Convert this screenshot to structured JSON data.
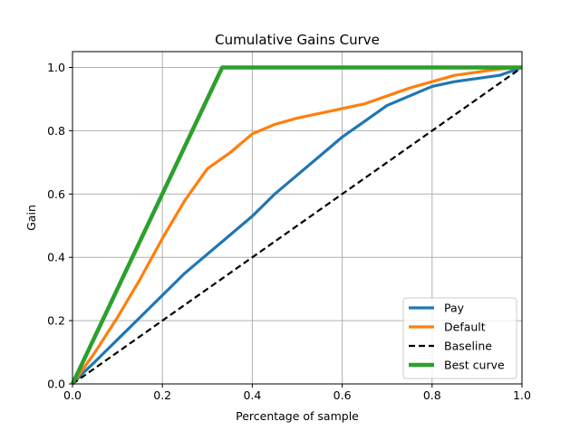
{
  "chart_data": {
    "type": "line",
    "title": "Cumulative Gains Curve",
    "xlabel": "Percentage of sample",
    "ylabel": "Gain",
    "xlim": [
      0,
      1
    ],
    "ylim": [
      0,
      1.05
    ],
    "xticks": [
      0.0,
      0.2,
      0.4,
      0.6,
      0.8,
      1.0
    ],
    "yticks": [
      0.0,
      0.2,
      0.4,
      0.6,
      0.8,
      1.0
    ],
    "xtick_labels": [
      "0.0",
      "0.2",
      "0.4",
      "0.6",
      "0.8",
      "1.0"
    ],
    "ytick_labels": [
      "0.0",
      "0.2",
      "0.4",
      "0.6",
      "0.8",
      "1.0"
    ],
    "grid": true,
    "legend_position": "bottom-right",
    "series": [
      {
        "name": "Pay",
        "color": "#1f77b4",
        "line_style": "solid",
        "x": [
          0,
          0.02,
          0.05,
          0.1,
          0.15,
          0.2,
          0.25,
          0.3,
          0.35,
          0.4,
          0.45,
          0.5,
          0.55,
          0.6,
          0.65,
          0.7,
          0.75,
          0.8,
          0.85,
          0.9,
          0.95,
          1.0
        ],
        "y": [
          0,
          0.03,
          0.07,
          0.14,
          0.21,
          0.28,
          0.35,
          0.41,
          0.47,
          0.53,
          0.6,
          0.66,
          0.72,
          0.78,
          0.83,
          0.88,
          0.91,
          0.94,
          0.955,
          0.965,
          0.975,
          1.0
        ]
      },
      {
        "name": "Default",
        "color": "#ff7f0e",
        "line_style": "solid",
        "x": [
          0,
          0.02,
          0.05,
          0.1,
          0.15,
          0.2,
          0.25,
          0.3,
          0.35,
          0.4,
          0.45,
          0.5,
          0.55,
          0.6,
          0.65,
          0.7,
          0.75,
          0.8,
          0.85,
          0.9,
          0.95,
          1.0
        ],
        "y": [
          0,
          0.04,
          0.1,
          0.21,
          0.33,
          0.46,
          0.58,
          0.68,
          0.73,
          0.79,
          0.82,
          0.84,
          0.855,
          0.87,
          0.885,
          0.91,
          0.935,
          0.955,
          0.975,
          0.985,
          0.995,
          1.0
        ]
      },
      {
        "name": "Baseline",
        "color": "#000000",
        "line_style": "dashed",
        "x": [
          0,
          1
        ],
        "y": [
          0,
          1
        ]
      },
      {
        "name": "Best curve",
        "color": "#2ca02c",
        "line_style": "solid",
        "x": [
          0,
          0.333,
          1.0
        ],
        "y": [
          0,
          1.0,
          1.0
        ]
      }
    ]
  }
}
